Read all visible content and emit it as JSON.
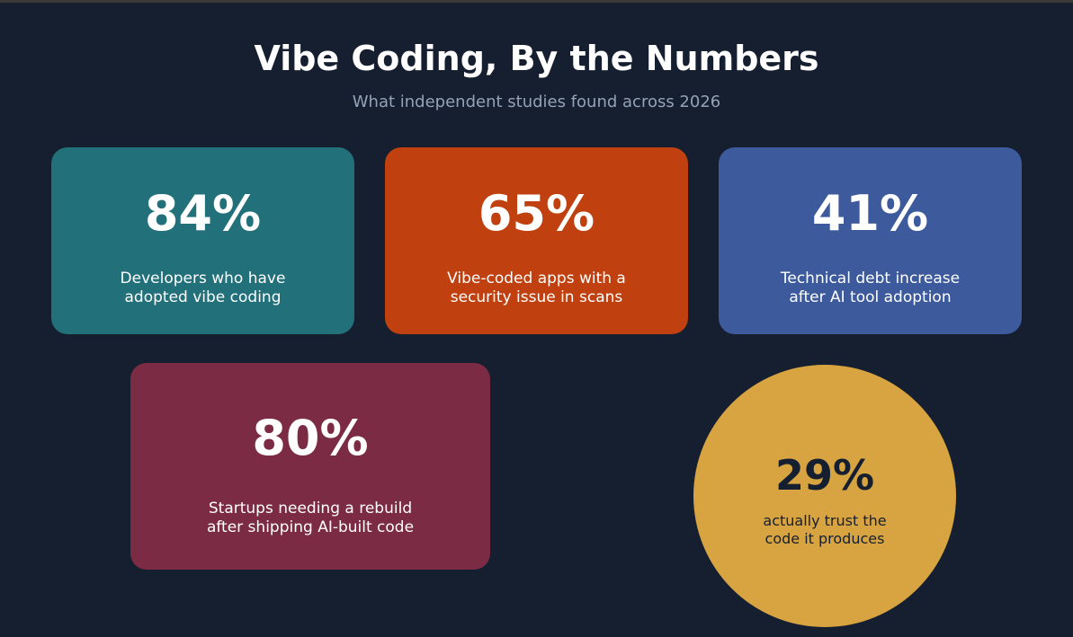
{
  "header": {
    "title": "Vibe Coding, By the Numbers",
    "subtitle": "What independent studies found across 2026"
  },
  "cards": [
    {
      "stat": "84%",
      "description_lines": [
        "Developers who have",
        "adopted vibe coding"
      ]
    },
    {
      "stat": "65%",
      "description_lines": [
        "Vibe-coded apps with a",
        "security issue in scans"
      ]
    },
    {
      "stat": "41%",
      "description_lines": [
        "Technical debt increase",
        "after AI tool adoption"
      ]
    },
    {
      "stat": "80%",
      "description_lines": [
        "Startups needing a rebuild",
        "after shipping AI-built code"
      ]
    }
  ],
  "circle": {
    "stat": "29%",
    "description_lines": [
      "actually trust the",
      "code it produces"
    ]
  }
}
